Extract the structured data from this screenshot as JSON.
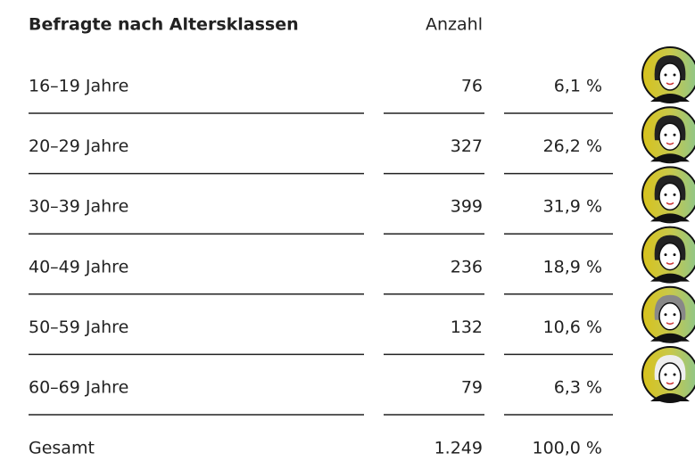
{
  "header": {
    "title": "Befragte nach Altersklassen",
    "count": "Anzahl"
  },
  "table": {
    "rows": [
      [
        "16–19 Jahre",
        "76",
        "6,1 %"
      ],
      [
        "20–29 Jahre",
        "327",
        "26,2 %"
      ],
      [
        "30–39 Jahre",
        "399",
        "31,9 %"
      ],
      [
        "40–49 Jahre",
        "236",
        "18,9 %"
      ],
      [
        "50–59 Jahre",
        "132",
        "10,6 %"
      ],
      [
        "60–69 Jahre",
        "79",
        "6,3 %"
      ]
    ],
    "total": [
      "Gesamt",
      "1.249",
      "100,0 %"
    ]
  }
}
